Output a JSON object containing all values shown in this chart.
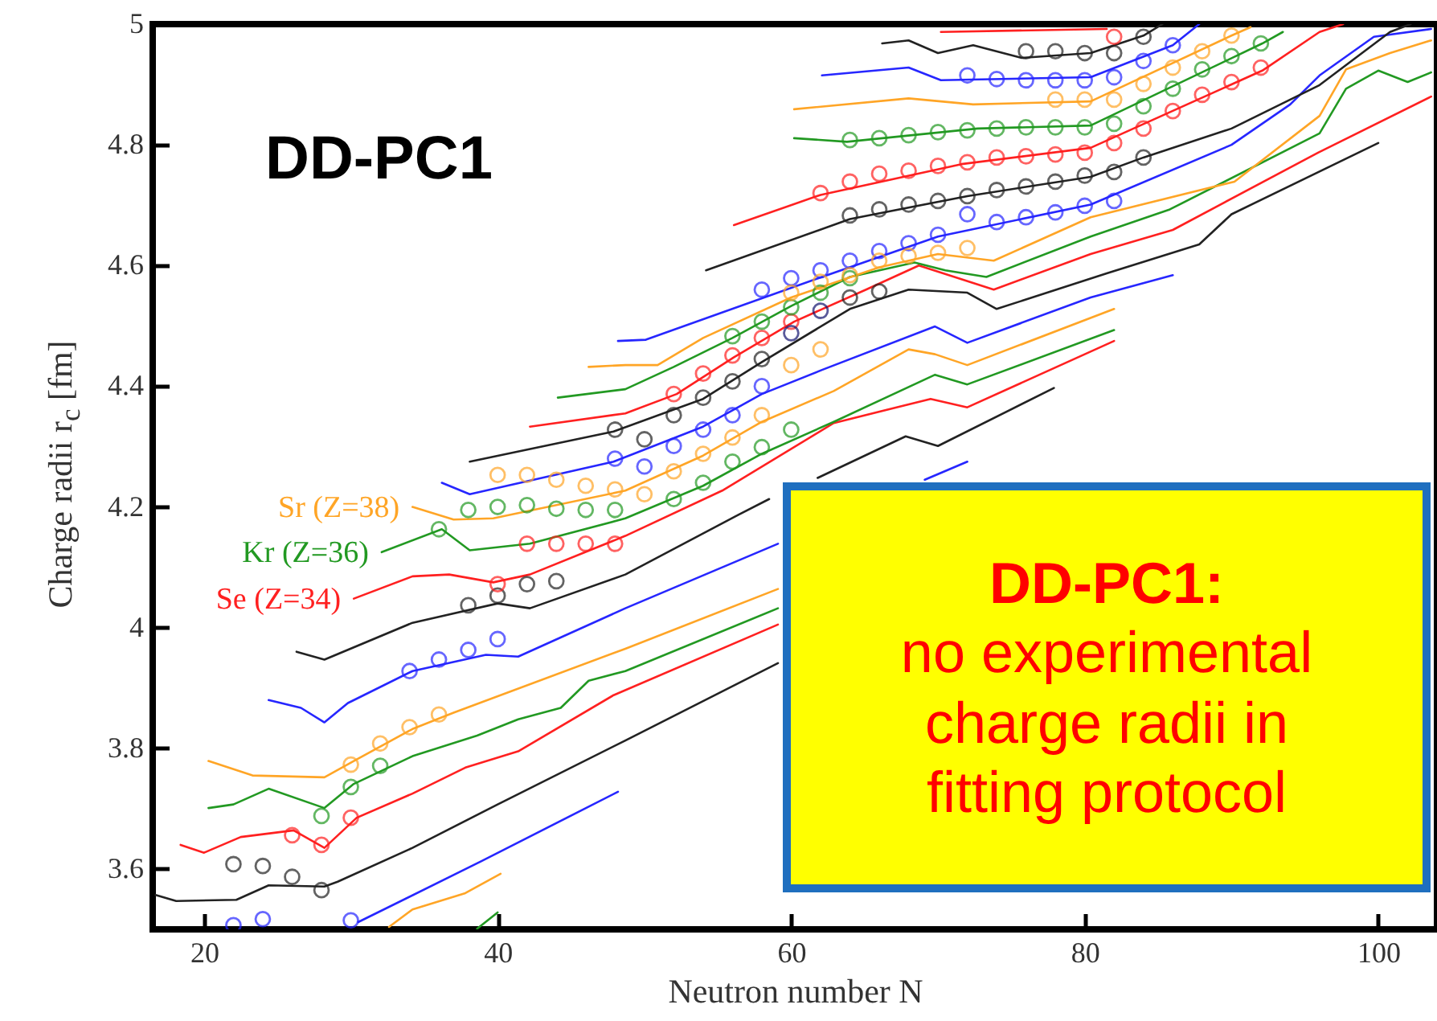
{
  "chart_data": {
    "type": "line",
    "xlabel": "Neutron number N",
    "ylabel": "Charge radii r$_{c}$ [fm]",
    "annotations": [
      "DD-PC1",
      "DD-PC1:",
      "no experimental charge radii in fitting protocol"
    ],
    "xlim": [
      16.5,
      104
    ],
    "ylim": [
      3.5,
      5
    ],
    "xticks": [
      20,
      40,
      60,
      80,
      100
    ],
    "yticks": [
      3.6,
      3.8,
      4,
      4.2,
      4.4,
      4.6,
      4.8,
      5
    ],
    "series": [
      {
        "color": "#229922",
        "x": [
          38.6,
          40.0
        ],
        "values": [
          3.501,
          3.528
        ]
      },
      {
        "color": "#ffa526",
        "x": [
          32.6,
          34.2,
          37.8,
          40.2
        ],
        "values": [
          3.504,
          3.533,
          3.56,
          3.592
        ]
      },
      {
        "color": "#2626ff",
        "x": [
          30.5,
          38.9,
          48.2
        ],
        "values": [
          3.512,
          3.613,
          3.728
        ]
      },
      {
        "color": "#222222",
        "x": [
          16.7,
          18.1,
          22.2,
          24.4,
          28.2,
          29.1,
          34.2,
          40.0,
          48.7,
          59.1
        ],
        "values": [
          3.557,
          3.547,
          3.549,
          3.573,
          3.571,
          3.579,
          3.635,
          3.707,
          3.813,
          3.941
        ]
      },
      {
        "color": "#ff2020",
        "x": [
          18.4,
          20.0,
          22.5,
          26.1,
          28.2,
          30.4,
          34.2,
          37.8,
          41.4,
          47.9,
          59.1
        ],
        "values": [
          3.64,
          3.627,
          3.653,
          3.664,
          3.635,
          3.685,
          3.725,
          3.768,
          3.795,
          3.888,
          4.005
        ]
      },
      {
        "color": "#229922",
        "x": [
          20.3,
          22.0,
          24.4,
          28.2,
          30.2,
          34.2,
          38.6,
          41.4,
          44.3,
          46.2,
          48.7,
          59.1
        ],
        "values": [
          3.701,
          3.707,
          3.733,
          3.701,
          3.741,
          3.787,
          3.821,
          3.848,
          3.867,
          3.912,
          3.928,
          4.032
        ]
      },
      {
        "color": "#ffa526",
        "x": [
          20.3,
          23.3,
          28.2,
          30.2,
          34.2,
          37.0,
          48.7,
          59.1
        ],
        "values": [
          3.779,
          3.755,
          3.752,
          3.779,
          3.832,
          3.859,
          3.965,
          4.064
        ]
      },
      {
        "color": "#2626ff",
        "x": [
          24.4,
          26.6,
          28.2,
          29.8,
          34.2,
          39.2,
          41.4,
          48.7,
          59.1,
          64.0,
          69.1,
          72.0
        ],
        "values": [
          3.88,
          3.867,
          3.843,
          3.875,
          3.928,
          3.955,
          3.952,
          4.032,
          4.139,
          null,
          4.245,
          4.275
        ]
      },
      {
        "color": "#222222",
        "x": [
          26.3,
          28.2,
          34.2,
          40.0,
          42.2,
          48.7,
          56.4,
          58.5,
          60.0,
          61.8,
          67.8,
          70.0,
          77.9
        ],
        "values": [
          3.96,
          3.947,
          4.008,
          4.04,
          4.032,
          4.088,
          4.187,
          4.213,
          null,
          4.248,
          4.317,
          4.301,
          4.397
        ]
      },
      {
        "color": "#ff2020",
        "name": "Se (Z=34)",
        "x": [
          30.2,
          34.2,
          36.7,
          39.7,
          42.2,
          48.7,
          55.3,
          62.9,
          69.5,
          72.0,
          82.0
        ],
        "values": [
          4.048,
          4.085,
          4.088,
          4.075,
          4.088,
          4.152,
          4.227,
          4.339,
          4.379,
          4.365,
          4.475
        ]
      },
      {
        "color": "#229922",
        "name": "Kr (Z=36)",
        "x": [
          32.1,
          36.2,
          38.1,
          42.2,
          48.7,
          54.0,
          58.0,
          62.9,
          69.8,
          72.0,
          82.0
        ],
        "values": [
          4.125,
          4.163,
          4.128,
          4.139,
          4.181,
          4.235,
          4.288,
          4.341,
          4.419,
          4.403,
          4.493
        ]
      },
      {
        "color": "#ffa526",
        "name": "Sr (Z=38)",
        "x": [
          34.2,
          37.0,
          39.7,
          48.7,
          54.0,
          58.0,
          62.9,
          68.0,
          69.8,
          72.0,
          82.0
        ],
        "values": [
          4.2,
          4.179,
          4.181,
          4.227,
          4.285,
          4.341,
          4.392,
          4.461,
          4.453,
          4.435,
          4.528
        ]
      },
      {
        "color": "#2626ff",
        "x": [
          36.2,
          38.1,
          47.9,
          54.0,
          58.0,
          62.1,
          69.8,
          72.0,
          80.4,
          86.0
        ],
        "values": [
          4.24,
          4.221,
          4.275,
          4.333,
          4.387,
          4.427,
          4.499,
          4.472,
          4.547,
          4.584
        ]
      },
      {
        "color": "#222222",
        "x": [
          38.1,
          47.9,
          54.0,
          58.0,
          64.0,
          68.0,
          72.0,
          74.0,
          81.5,
          87.8,
          90.0,
          100.0
        ],
        "values": [
          4.275,
          4.325,
          4.379,
          4.44,
          4.528,
          4.56,
          4.555,
          4.528,
          4.587,
          4.635,
          4.685,
          4.803
        ]
      },
      {
        "color": "#ff2020",
        "x": [
          42.2,
          48.7,
          52.2,
          56.1,
          60.2,
          65.1,
          68.7,
          73.8,
          80.4,
          86.0,
          95.9,
          103.6
        ],
        "values": [
          4.333,
          4.355,
          4.387,
          4.448,
          4.507,
          4.56,
          4.6,
          4.56,
          4.619,
          4.659,
          4.787,
          4.88
        ]
      },
      {
        "color": "#229922",
        "x": [
          44.1,
          48.7,
          52.0,
          56.0,
          60.0,
          64.0,
          68.4,
          70.5,
          73.3,
          80.4,
          85.8,
          96.0,
          97.8,
          100.0,
          102.0,
          103.6
        ],
        "values": [
          4.381,
          4.395,
          4.432,
          4.48,
          4.533,
          4.581,
          4.605,
          4.592,
          4.581,
          4.648,
          4.693,
          4.819,
          4.893,
          4.923,
          4.904,
          4.92
        ]
      },
      {
        "color": "#ffa526",
        "x": [
          46.2,
          48.7,
          50.9,
          54.0,
          60.0,
          66.0,
          70.0,
          73.8,
          80.4,
          90.2,
          96.0,
          97.8,
          100.8,
          103.6
        ],
        "values": [
          4.432,
          4.435,
          4.435,
          4.48,
          4.547,
          4.597,
          4.619,
          4.608,
          4.68,
          4.739,
          4.848,
          4.925,
          4.952,
          4.973
        ]
      },
      {
        "color": "#2626ff",
        "x": [
          48.2,
          50.1,
          62.1,
          70.0,
          80.4,
          90.0,
          94.0,
          96.0,
          99.7,
          103.6
        ],
        "values": [
          4.475,
          4.477,
          4.581,
          4.648,
          4.701,
          4.8,
          4.867,
          4.915,
          4.979,
          4.992
        ]
      },
      {
        "color": "#222222",
        "x": [
          54.2,
          64.0,
          72.0,
          80.4,
          84.0,
          90.0,
          96.0,
          100.8,
          102.2
        ],
        "values": [
          4.592,
          4.677,
          4.715,
          4.747,
          4.779,
          4.827,
          4.899,
          4.987,
          5.0
        ]
      },
      {
        "color": "#ff2020",
        "x": [
          56.1,
          62.0,
          71.6,
          80.4,
          92.1,
          96.0,
          97.6
        ],
        "values": [
          4.667,
          4.717,
          4.768,
          4.795,
          4.923,
          4.987,
          5.0
        ]
      },
      {
        "color": "#229922",
        "x": [
          60.2,
          63.8,
          72.7,
          80.4,
          92.1,
          93.5
        ],
        "values": [
          4.811,
          4.805,
          4.827,
          4.832,
          4.968,
          4.987
        ]
      },
      {
        "color": "#ffa526",
        "x": [
          60.2,
          68.0,
          72.4,
          80.4,
          90.0,
          91.3
        ],
        "values": [
          4.859,
          4.877,
          4.867,
          4.872,
          4.981,
          4.995
        ]
      },
      {
        "color": "#2626ff",
        "x": [
          62.1,
          68.0,
          70.2,
          80.4,
          86.0,
          87.8
        ],
        "values": [
          4.915,
          4.928,
          4.907,
          4.912,
          4.965,
          5.0
        ]
      },
      {
        "color": "#222222",
        "x": [
          66.2,
          68.0,
          70.0,
          72.4,
          75.7,
          80.4,
          84.0,
          85.3
        ],
        "values": [
          4.968,
          4.973,
          4.952,
          4.965,
          4.944,
          4.952,
          4.981,
          5.0
        ]
      },
      {
        "color": "#ff2020",
        "x": [
          70.2,
          81.5
        ],
        "values": [
          4.987,
          4.992
        ]
      },
      {
        "type": "scatter",
        "marker": "circle",
        "color": "#2626ff",
        "x": [
          22,
          24,
          30,
          34,
          36,
          38,
          40,
          48,
          50,
          52,
          54,
          56,
          58,
          58,
          60,
          62,
          64,
          66,
          68,
          70,
          72,
          74,
          76,
          78,
          80,
          82,
          72,
          74,
          76,
          78,
          80,
          82,
          84,
          86
        ],
        "values": [
          3.507,
          3.517,
          3.515,
          3.928,
          3.947,
          3.963,
          3.981,
          4.28,
          4.267,
          4.301,
          4.328,
          4.352,
          4.4,
          4.56,
          4.579,
          4.592,
          4.608,
          4.624,
          4.637,
          4.651,
          4.685,
          4.672,
          4.68,
          4.688,
          4.699,
          4.707,
          4.915,
          4.909,
          4.907,
          4.907,
          4.907,
          4.912,
          4.939,
          4.965
        ]
      },
      {
        "type": "scatter",
        "marker": "circle",
        "color": "#222222",
        "x": [
          22,
          24,
          26,
          28,
          38,
          40,
          42,
          44,
          48,
          50,
          52,
          54,
          56,
          58,
          64,
          66,
          64,
          66,
          68,
          70,
          72,
          74,
          76,
          78,
          80,
          82,
          84,
          76,
          78,
          80,
          82,
          84
        ],
        "values": [
          3.608,
          3.605,
          3.587,
          3.565,
          4.037,
          4.053,
          4.072,
          4.077,
          4.328,
          4.312,
          4.352,
          4.381,
          4.408,
          4.445,
          4.547,
          4.557,
          4.683,
          4.693,
          4.701,
          4.707,
          4.715,
          4.725,
          4.731,
          4.739,
          4.749,
          4.755,
          4.779,
          4.955,
          4.955,
          4.952,
          4.952,
          4.979
        ]
      },
      {
        "type": "scatter",
        "marker": "circle",
        "color": "#ff2020",
        "x": [
          26,
          28,
          30,
          40,
          42,
          44,
          46,
          48,
          52,
          54,
          56,
          58,
          60,
          62,
          64,
          66,
          68,
          70,
          72,
          74,
          76,
          78,
          80,
          82,
          84,
          86,
          88,
          90,
          92,
          82
        ],
        "values": [
          3.656,
          3.64,
          3.685,
          4.072,
          4.139,
          4.139,
          4.139,
          4.139,
          4.387,
          4.421,
          4.451,
          4.48,
          4.507,
          4.72,
          4.739,
          4.752,
          4.757,
          4.765,
          4.771,
          4.779,
          4.781,
          4.784,
          4.787,
          4.803,
          4.827,
          4.856,
          4.883,
          4.904,
          4.928,
          4.979
        ]
      },
      {
        "type": "scatter",
        "marker": "circle",
        "color": "#229922",
        "x": [
          28,
          30,
          32,
          36,
          38,
          40,
          42,
          44,
          46,
          48,
          52,
          54,
          56,
          58,
          60,
          56,
          58,
          60,
          62,
          64,
          64,
          66,
          68,
          70,
          72,
          74,
          76,
          78,
          80,
          82,
          84,
          86,
          88,
          90,
          92
        ],
        "values": [
          3.688,
          3.736,
          3.771,
          4.163,
          4.195,
          4.2,
          4.203,
          4.197,
          4.195,
          4.195,
          4.213,
          4.24,
          4.275,
          4.299,
          4.328,
          4.483,
          4.507,
          4.531,
          4.555,
          4.579,
          4.808,
          4.811,
          4.816,
          4.821,
          4.824,
          4.827,
          4.829,
          4.829,
          4.829,
          4.835,
          4.864,
          4.893,
          4.925,
          4.947,
          4.968
        ]
      },
      {
        "type": "scatter",
        "marker": "circle",
        "color": "#ffa526",
        "x": [
          30,
          32,
          34,
          36,
          40,
          42,
          44,
          46,
          48,
          50,
          52,
          54,
          56,
          58,
          60,
          62,
          60,
          62,
          64,
          66,
          68,
          70,
          72,
          78,
          80,
          82,
          84,
          86,
          88,
          90
        ],
        "values": [
          3.773,
          3.808,
          3.835,
          3.856,
          4.253,
          4.253,
          4.245,
          4.235,
          4.229,
          4.221,
          4.259,
          4.288,
          4.315,
          4.352,
          4.435,
          4.461,
          4.555,
          4.573,
          4.584,
          4.608,
          4.616,
          4.621,
          4.629,
          4.875,
          4.875,
          4.875,
          4.901,
          4.928,
          4.955,
          4.981
        ]
      },
      {
        "type": "scatter",
        "marker": "circle",
        "color": "#141470",
        "x": [
          60,
          62
        ],
        "values": [
          4.488,
          4.525
        ]
      }
    ]
  }
}
